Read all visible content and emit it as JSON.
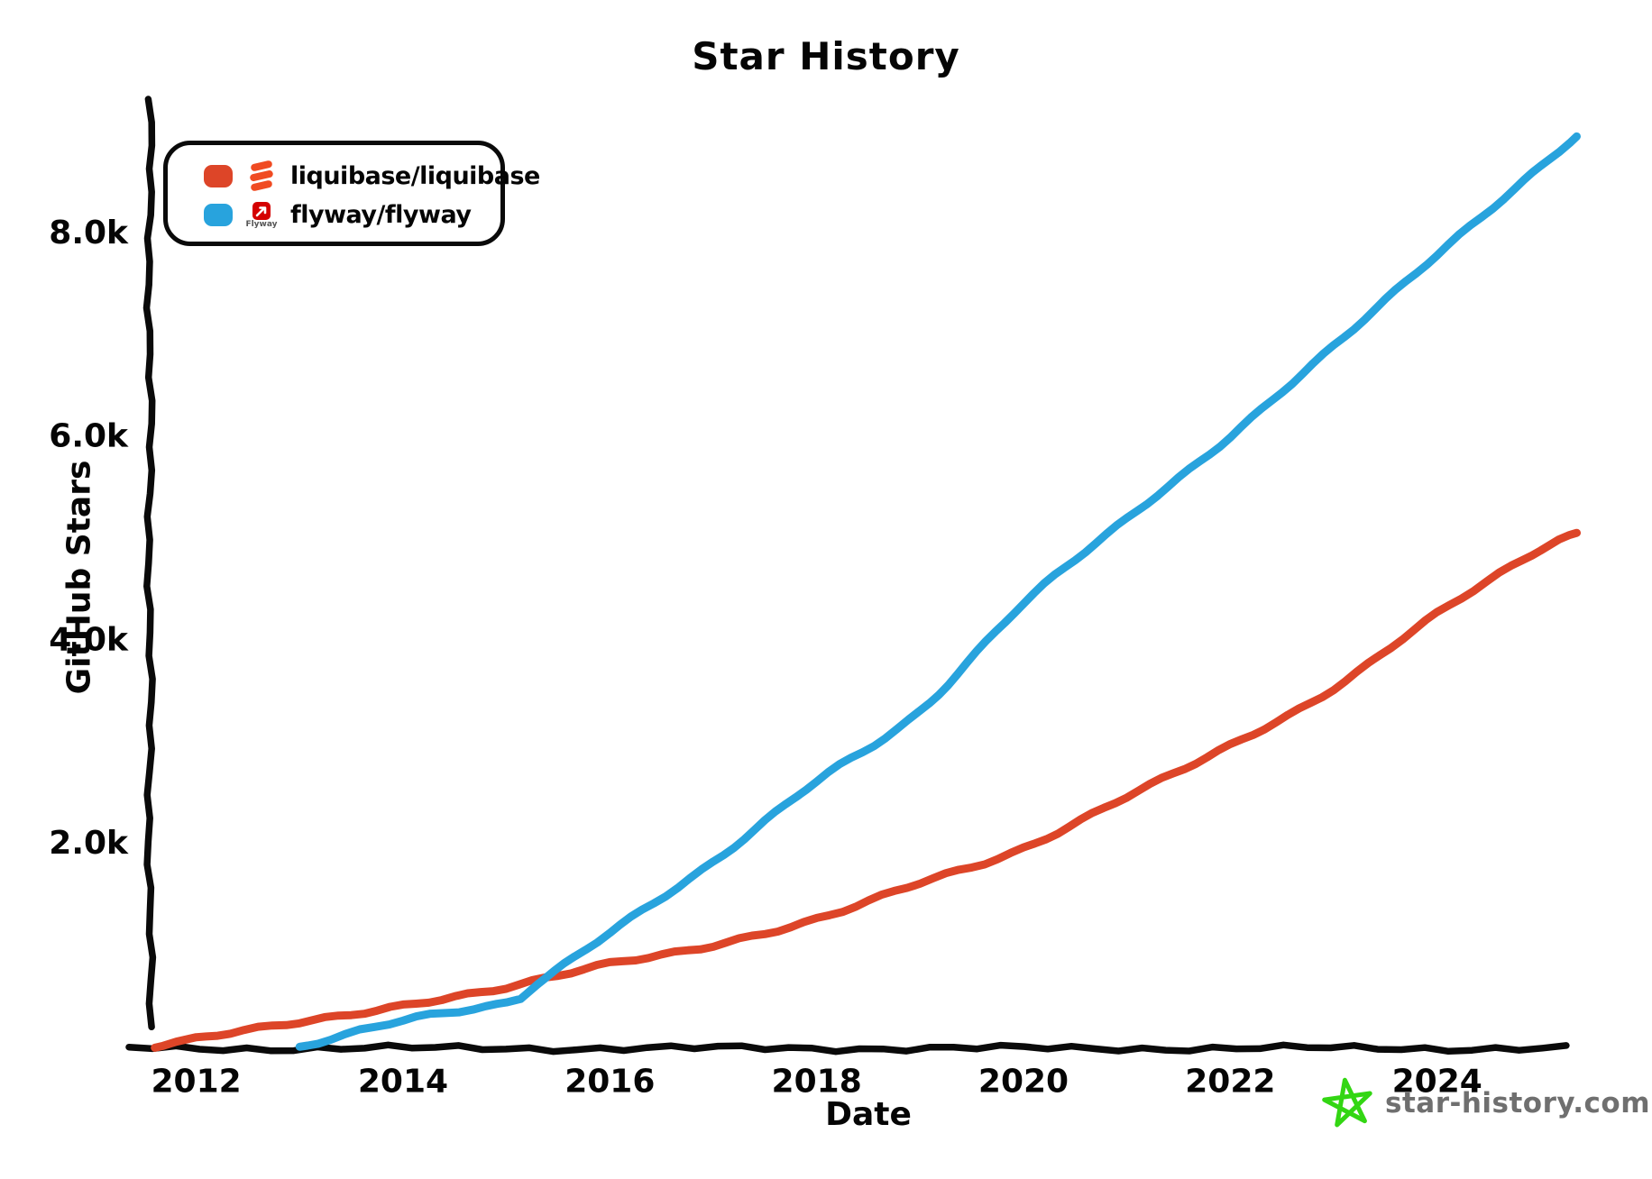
{
  "page": {
    "title": "Star History"
  },
  "chart_data": {
    "type": "line",
    "title": "Star History",
    "xlabel": "Date",
    "ylabel": "GitHub Stars",
    "xlim": [
      2011.55,
      2025.45
    ],
    "ylim": [
      0,
      9300
    ],
    "grid": false,
    "legend_position": "top-left",
    "x_ticks": [
      {
        "value": 2012,
        "label": "2012"
      },
      {
        "value": 2014,
        "label": "2014"
      },
      {
        "value": 2016,
        "label": "2016"
      },
      {
        "value": 2018,
        "label": "2018"
      },
      {
        "value": 2020,
        "label": "2020"
      },
      {
        "value": 2022,
        "label": "2022"
      },
      {
        "value": 2024,
        "label": "2024"
      }
    ],
    "y_ticks": [
      {
        "value": 2000,
        "label": "2.0k"
      },
      {
        "value": 4000,
        "label": "4.0k"
      },
      {
        "value": 6000,
        "label": "6.0k"
      },
      {
        "value": 8000,
        "label": "8.0k"
      }
    ],
    "series": [
      {
        "name": "liquibase/liquibase",
        "color": "#dd4528",
        "points": [
          [
            2011.6,
            0
          ],
          [
            2012,
            70
          ],
          [
            2013,
            240
          ],
          [
            2014,
            410
          ],
          [
            2015,
            570
          ],
          [
            2016,
            820
          ],
          [
            2017,
            1000
          ],
          [
            2018,
            1240
          ],
          [
            2019,
            1620
          ],
          [
            2020,
            1950
          ],
          [
            2021,
            2450
          ],
          [
            2022,
            2970
          ],
          [
            2023,
            3520
          ],
          [
            2024,
            4250
          ],
          [
            2025,
            4900
          ],
          [
            2025.35,
            5050
          ]
        ]
      },
      {
        "name": "flyway/flyway",
        "color": "#28a3dd",
        "points": [
          [
            2013,
            0
          ],
          [
            2014,
            250
          ],
          [
            2015,
            430
          ],
          [
            2015.3,
            630
          ],
          [
            2016,
            1130
          ],
          [
            2017,
            1800
          ],
          [
            2018,
            2620
          ],
          [
            2019,
            3300
          ],
          [
            2020,
            4350
          ],
          [
            2021,
            5200
          ],
          [
            2022,
            6000
          ],
          [
            2023,
            6880
          ],
          [
            2024,
            7800
          ],
          [
            2025,
            8650
          ],
          [
            2025.35,
            8950
          ]
        ]
      }
    ]
  },
  "legend": {
    "items": [
      {
        "label": "liquibase/liquibase",
        "swatch_color": "#dd4528",
        "icon": "liquibase-logo",
        "icon_color": "#f04b22"
      },
      {
        "label": "flyway/flyway",
        "swatch_color": "#28a3dd",
        "icon": "flyway-logo",
        "icon_color": "#d40000",
        "icon_caption": "Flyway"
      }
    ]
  },
  "watermark": {
    "text": "star-history.com",
    "star_color": "#33d613",
    "text_color": "#6f6f6f"
  }
}
